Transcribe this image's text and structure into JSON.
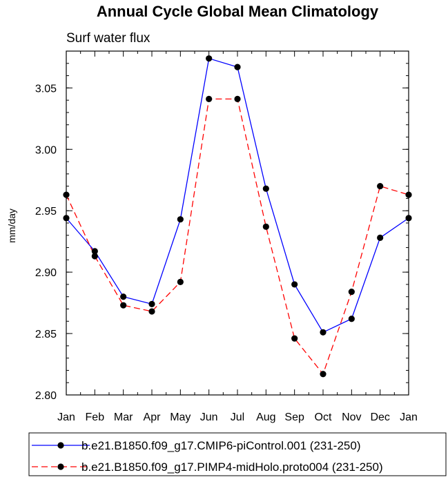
{
  "chart_data": {
    "type": "line",
    "title": "Annual Cycle Global Mean Climatology",
    "subtitle": "Surf water flux",
    "xlabel": "",
    "ylabel": "mm/day",
    "categories": [
      "Jan",
      "Feb",
      "Mar",
      "Apr",
      "May",
      "Jun",
      "Jul",
      "Aug",
      "Sep",
      "Oct",
      "Nov",
      "Dec",
      "Jan"
    ],
    "ylim": [
      2.8,
      3.08
    ],
    "yticks": [
      "2.80",
      "2.85",
      "2.90",
      "2.95",
      "3.00",
      "3.05"
    ],
    "grid": false,
    "legend_position": "bottom",
    "series": [
      {
        "name": "b.e21.B1850.f09_g17.CMIP6-piControl.001 (231-250)",
        "color": "#0000ff",
        "dash": "solid",
        "values": [
          2.944,
          2.917,
          2.88,
          2.874,
          2.943,
          3.074,
          3.067,
          2.968,
          2.89,
          2.851,
          2.862,
          2.928,
          2.944
        ]
      },
      {
        "name": "b.e21.B1850.f09_g17.PIMP4-midHolo.proto004 (231-250)",
        "color": "#ff0000",
        "dash": "dashed",
        "values": [
          2.963,
          2.913,
          2.873,
          2.868,
          2.892,
          3.041,
          3.041,
          2.937,
          2.846,
          2.817,
          2.884,
          2.97,
          2.963
        ]
      }
    ]
  }
}
